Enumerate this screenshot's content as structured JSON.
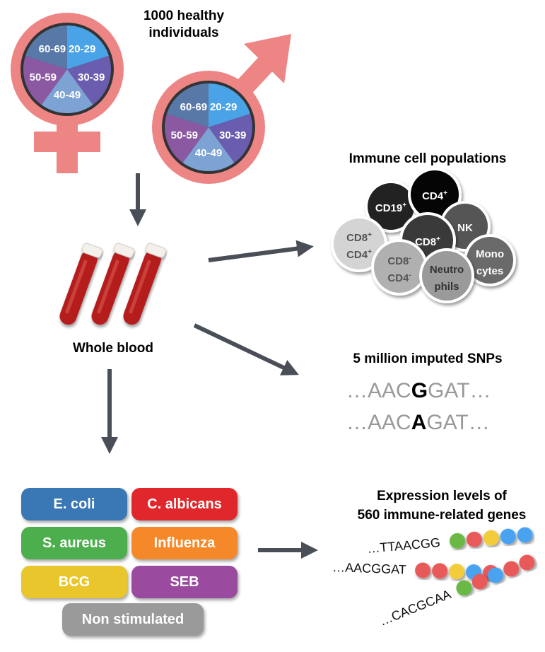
{
  "cohort": {
    "title_line1": "1000 healthy",
    "title_line2": "individuals",
    "age_groups": [
      "20-29",
      "30-39",
      "40-49",
      "50-59",
      "60-69"
    ],
    "age_colors": [
      "#4aa3e6",
      "#6a5db0",
      "#7da2d4",
      "#8b58a2",
      "#5879a8"
    ],
    "symbol_color": "#ee8585"
  },
  "blood": {
    "label": "Whole blood",
    "tube_color": "#b51f1f"
  },
  "immune": {
    "title": "Immune cell populations",
    "cells": [
      {
        "l1": "CD19",
        "s1": "+",
        "color": "#222222",
        "text": "#ffffff"
      },
      {
        "l1": "CD4",
        "s1": "+",
        "color": "#050505",
        "text": "#ffffff"
      },
      {
        "l1": "NK",
        "color": "#555555",
        "text": "#ffffff"
      },
      {
        "l1": "CD8",
        "s1": "+",
        "l2": "CD4",
        "s2": "+",
        "color": "#d4d4d4",
        "text": "#555555"
      },
      {
        "l1": "CD8",
        "s1": "+",
        "color": "#3a3a3a",
        "text": "#ffffff"
      },
      {
        "l1": "Mono",
        "l2": "cytes",
        "color": "#6a6a6a",
        "text": "#ffffff"
      },
      {
        "l1": "CD8",
        "s1": "-",
        "l2": "CD4",
        "s2": "-",
        "color": "#b0b0b0",
        "text": "#555555"
      },
      {
        "l1": "Neutro",
        "l2": "phils",
        "color": "#9a9a9a",
        "text": "#333333"
      }
    ]
  },
  "snps": {
    "title": "5 million imputed SNPs",
    "seq1": {
      "pre": "…AAC",
      "snp": "G",
      "post": "GAT…"
    },
    "seq2": {
      "pre": "…AAC",
      "snp": "A",
      "post": "GAT…"
    }
  },
  "expression": {
    "title_line1": "Expression levels of",
    "title_line2": "560 immune-related genes",
    "rows": [
      {
        "seq": "…TTAACGG",
        "dots": [
          "#6ab845",
          "#e85a5a",
          "#f2cc3a",
          "#4aa3f0",
          "#4aa3f0"
        ]
      },
      {
        "seq": "…AACGGAT",
        "dots": [
          "#e85a5a",
          "#e85a5a",
          "#f2cc3a",
          "#4aa3f0",
          "#e85a5a"
        ]
      },
      {
        "seq": "…CACGCAA",
        "dots": [
          "#6ab845",
          "#e85a5a",
          "#4aa3f0",
          "#e85a5a",
          "#e85a5a"
        ]
      }
    ]
  },
  "stimuli": [
    {
      "label": "E. coli",
      "color": "#3a78b5"
    },
    {
      "label": "C. albicans",
      "color": "#e0282c"
    },
    {
      "label": "S. aureus",
      "color": "#4cae4c"
    },
    {
      "label": "Influenza",
      "color": "#f5892a"
    },
    {
      "label": "BCG",
      "color": "#e9c62b"
    },
    {
      "label": "SEB",
      "color": "#9a4a9f"
    },
    {
      "label": "Non stimulated",
      "color": "#9a9a9a"
    }
  ],
  "arrow_color": "#4a4f57"
}
